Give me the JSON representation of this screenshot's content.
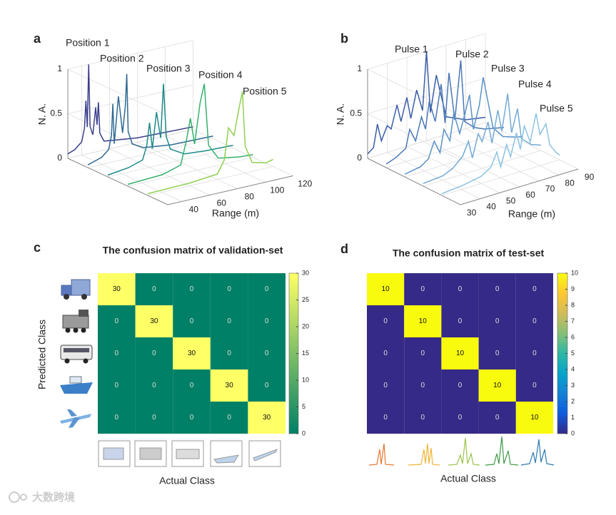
{
  "chart_data": [
    {
      "panel": "a",
      "type": "waterfall3d",
      "zlabel": "N. A.",
      "xlabel": "Range (m)",
      "xlim": [
        30,
        120
      ],
      "xticks": [
        40,
        60,
        80,
        100,
        120
      ],
      "zlim": [
        0,
        1
      ],
      "zticks": [
        0,
        0.5,
        1
      ],
      "series": [
        {
          "name": "Position 1",
          "color": "#3b3f8c",
          "x": [
            30,
            35,
            40,
            42,
            43,
            44,
            45,
            46,
            48,
            50,
            51,
            52,
            53,
            56,
            65,
            80,
            100,
            120
          ],
          "values": [
            0.05,
            0.08,
            0.15,
            0.3,
            0.6,
            0.3,
            1.0,
            0.3,
            0.2,
            0.5,
            0.3,
            0.55,
            0.2,
            0.1,
            0.08,
            0.05,
            0.04,
            0.03
          ]
        },
        {
          "name": "Position 2",
          "color": "#2f6a93",
          "x": [
            30,
            40,
            45,
            47,
            48,
            49,
            52,
            55,
            57,
            58,
            59,
            62,
            70,
            90,
            120
          ],
          "values": [
            0.03,
            0.08,
            0.15,
            0.3,
            0.65,
            0.2,
            0.72,
            0.3,
            0.6,
            0.95,
            0.3,
            0.15,
            0.08,
            0.04,
            0.03
          ]
        },
        {
          "name": "Position 3",
          "color": "#1f8a8a",
          "x": [
            30,
            45,
            55,
            58,
            60,
            62,
            65,
            68,
            70,
            72,
            75,
            85,
            100,
            120
          ],
          "values": [
            0.02,
            0.05,
            0.1,
            0.25,
            0.5,
            0.2,
            0.6,
            0.3,
            0.9,
            0.3,
            0.15,
            0.06,
            0.04,
            0.03
          ]
        },
        {
          "name": "Position 4",
          "color": "#35b06c",
          "x": [
            30,
            55,
            68,
            72,
            75,
            78,
            82,
            85,
            88,
            95,
            110,
            120
          ],
          "values": [
            0.02,
            0.04,
            0.1,
            0.35,
            0.6,
            0.3,
            0.75,
            0.95,
            0.25,
            0.08,
            0.04,
            0.03
          ]
        },
        {
          "name": "Position 5",
          "color": "#8fd14f",
          "x": [
            30,
            60,
            80,
            85,
            88,
            92,
            95,
            98,
            100,
            105,
            115,
            120
          ],
          "values": [
            0.02,
            0.03,
            0.06,
            0.2,
            0.55,
            0.45,
            0.7,
            0.92,
            0.3,
            0.1,
            0.06,
            0.08
          ]
        }
      ]
    },
    {
      "panel": "b",
      "type": "waterfall3d",
      "zlabel": "N. A.",
      "xlabel": "Range (m)",
      "xlim": [
        30,
        90
      ],
      "xticks": [
        30,
        40,
        50,
        60,
        70,
        80,
        90
      ],
      "zlim": [
        0,
        1
      ],
      "zticks": [
        0,
        0.5,
        1
      ],
      "series": [
        {
          "name": "Pulse 1",
          "color": "#3a5ea8",
          "x": [
            30,
            33,
            35,
            37,
            40,
            42,
            45,
            47,
            50,
            52,
            55,
            58,
            60,
            62,
            65,
            70,
            75,
            80,
            90
          ],
          "values": [
            0.05,
            0.1,
            0.35,
            0.15,
            0.3,
            0.25,
            0.5,
            0.3,
            0.55,
            0.3,
            0.6,
            0.35,
            1.0,
            0.3,
            0.7,
            0.2,
            0.15,
            0.1,
            0.06
          ]
        },
        {
          "name": "Pulse 2",
          "color": "#4a78b8",
          "x": [
            30,
            35,
            40,
            42,
            45,
            48,
            50,
            52,
            55,
            58,
            60,
            62,
            65,
            68,
            70,
            75,
            80,
            90
          ],
          "values": [
            0.04,
            0.08,
            0.15,
            0.35,
            0.2,
            0.45,
            0.3,
            0.6,
            0.35,
            0.75,
            0.3,
            0.85,
            0.3,
            0.95,
            0.25,
            0.15,
            0.1,
            0.05
          ]
        },
        {
          "name": "Pulse 3",
          "color": "#5a92c8",
          "x": [
            30,
            38,
            42,
            45,
            48,
            50,
            53,
            55,
            58,
            60,
            63,
            65,
            68,
            70,
            75,
            80,
            85,
            90
          ],
          "values": [
            0.03,
            0.06,
            0.12,
            0.3,
            0.15,
            0.4,
            0.25,
            0.55,
            0.3,
            0.45,
            0.7,
            0.3,
            0.55,
            0.85,
            0.25,
            0.12,
            0.08,
            0.05
          ]
        },
        {
          "name": "Pulse 4",
          "color": "#72aad6",
          "x": [
            30,
            40,
            45,
            50,
            53,
            55,
            58,
            60,
            63,
            65,
            68,
            70,
            73,
            75,
            78,
            80,
            85,
            90
          ],
          "values": [
            0.03,
            0.05,
            0.1,
            0.2,
            0.35,
            0.15,
            0.4,
            0.3,
            0.5,
            0.25,
            0.6,
            0.35,
            0.75,
            0.3,
            0.55,
            0.2,
            0.1,
            0.06
          ]
        },
        {
          "name": "Pulse 5",
          "color": "#8cc3e2",
          "x": [
            30,
            40,
            50,
            55,
            58,
            60,
            63,
            65,
            68,
            70,
            72,
            75,
            78,
            80,
            83,
            85,
            88,
            90
          ],
          "values": [
            0.02,
            0.04,
            0.08,
            0.15,
            0.3,
            0.12,
            0.35,
            0.2,
            0.45,
            0.25,
            0.5,
            0.3,
            0.6,
            0.35,
            0.45,
            0.2,
            0.1,
            0.05
          ]
        }
      ]
    },
    {
      "panel": "c",
      "type": "heatmap",
      "title": "The confusion matrix of validation-set",
      "ylabel": "Predicted Class",
      "xlabel": "Actual Class",
      "values": [
        [
          30,
          0,
          0,
          0,
          0
        ],
        [
          0,
          30,
          0,
          0,
          0
        ],
        [
          0,
          0,
          30,
          0,
          0
        ],
        [
          0,
          0,
          0,
          30,
          0
        ],
        [
          0,
          0,
          0,
          0,
          30
        ]
      ],
      "clim": [
        0,
        30
      ],
      "cticks": [
        0,
        5,
        10,
        15,
        20,
        25,
        30
      ],
      "colormap": [
        "#008066",
        "#ffff66"
      ]
    },
    {
      "panel": "d",
      "type": "heatmap",
      "title": "The confusion matrix of test-set",
      "xlabel": "Actual Class",
      "values": [
        [
          10,
          0,
          0,
          0,
          0
        ],
        [
          0,
          10,
          0,
          0,
          0
        ],
        [
          0,
          0,
          10,
          0,
          0
        ],
        [
          0,
          0,
          0,
          10,
          0
        ],
        [
          0,
          0,
          0,
          0,
          10
        ]
      ],
      "clim": [
        0,
        10
      ],
      "cticks": [
        0,
        1,
        2,
        3,
        4,
        5,
        6,
        7,
        8,
        9,
        10
      ],
      "colormap": [
        "#352a87",
        "#0f5cdd",
        "#1481d6",
        "#06a4ca",
        "#2eb7a4",
        "#87bf77",
        "#d1bb59",
        "#fec832",
        "#f9fb0e"
      ]
    }
  ],
  "watermark": "大数跨境"
}
